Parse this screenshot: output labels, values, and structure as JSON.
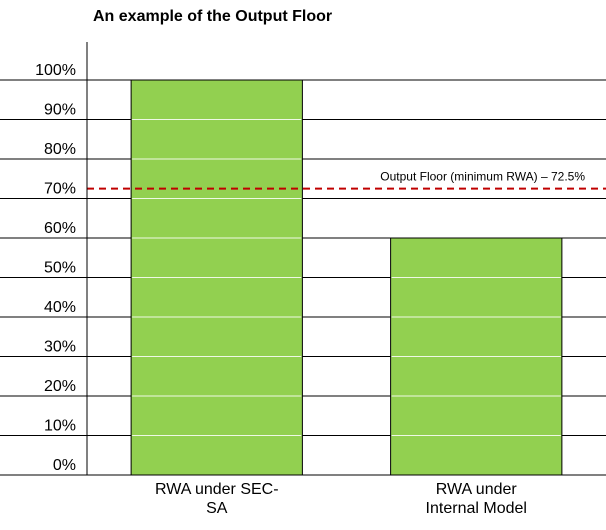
{
  "chart_data": {
    "type": "bar",
    "title": "An example of the Output Floor",
    "xlabel": "",
    "ylabel": "",
    "ylim": [
      0,
      100
    ],
    "y_ticks": [
      0,
      10,
      20,
      30,
      40,
      50,
      60,
      70,
      80,
      90,
      100
    ],
    "y_tick_labels": [
      "0%",
      "10%",
      "20%",
      "30%",
      "40%",
      "50%",
      "60%",
      "70%",
      "80%",
      "90%",
      "100%"
    ],
    "grid": true,
    "categories": [
      [
        "RWA under SEC-",
        "SA"
      ],
      [
        "RWA under",
        "Internal Model"
      ]
    ],
    "values": [
      100,
      60
    ],
    "bar_color": "#92d050",
    "floor": {
      "value": 72.5,
      "label": "Output Floor (minimum RWA) – 72.5%",
      "color": "#c00000",
      "style": "dashed"
    }
  }
}
